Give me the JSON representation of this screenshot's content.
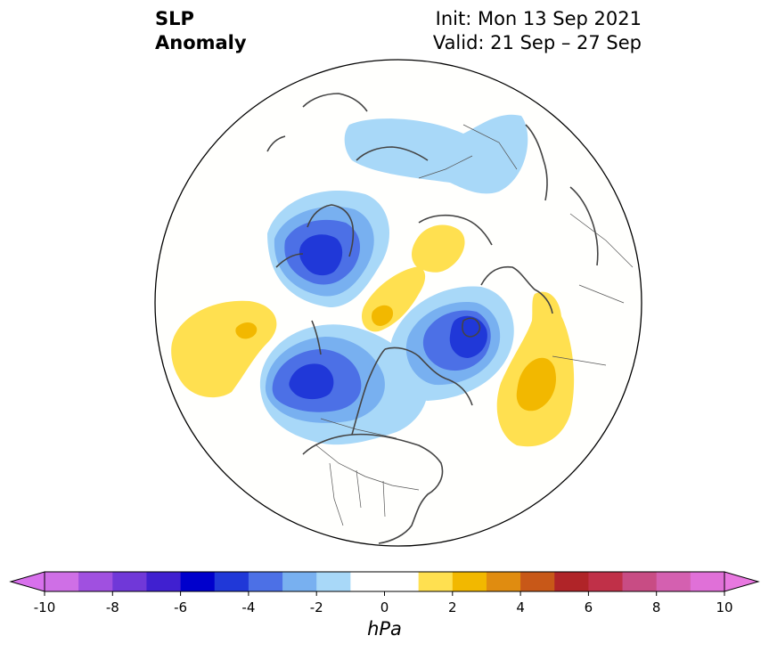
{
  "title": {
    "left_line1": "SLP",
    "left_line2": "Anomaly",
    "right_line1": "Init: Mon 13 Sep 2021",
    "right_line2": "Valid: 21 Sep – 27 Sep"
  },
  "colorbar": {
    "unit": "hPa",
    "min": -10,
    "max": 10,
    "step": 1,
    "tick_labels": [
      "-10",
      "-8",
      "-6",
      "-4",
      "-2",
      "0",
      "2",
      "4",
      "6",
      "8",
      "10"
    ],
    "colors": [
      "#cf6fe6",
      "#a050e0",
      "#7038d8",
      "#4020d0",
      "#0000cc",
      "#2038d8",
      "#4c70e6",
      "#78b0f0",
      "#a8d8f8",
      "#ffffff",
      "#ffffff",
      "#ffe050",
      "#f2b800",
      "#e08c10",
      "#c85818",
      "#b02428",
      "#c03048",
      "#c84c84",
      "#d460b0",
      "#e070d8"
    ],
    "extend_low_color": "#d870ec",
    "extend_high_color": "#e878e0"
  },
  "map": {
    "projection": "north-polar-stereographic",
    "anomaly_centers": [
      {
        "region": "northern Europe / Scandinavia",
        "value_hPa": -5
      },
      {
        "region": "Gulf of Alaska",
        "value_hPa": -5
      },
      {
        "region": "northern Greenland / Canadian Arctic",
        "value_hPa": -5
      },
      {
        "region": "North Pacific (west)",
        "value_hPa": 2
      },
      {
        "region": "North Atlantic (central)",
        "value_hPa": 3
      },
      {
        "region": "Barents / Kara Sea",
        "value_hPa": 2
      },
      {
        "region": "Arctic Ocean (Siberian side)",
        "value_hPa": 2
      },
      {
        "region": "Siberia",
        "value_hPa": -1
      }
    ]
  }
}
